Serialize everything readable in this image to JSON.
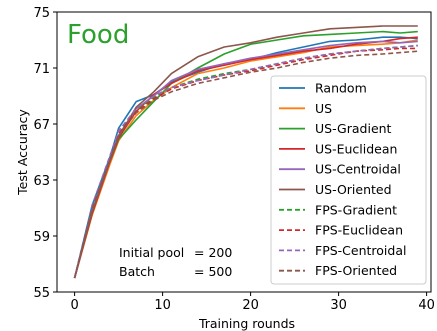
{
  "chart_data": {
    "type": "line",
    "title": "Food",
    "title_color": "#2ca02c",
    "xlabel": "Training rounds",
    "ylabel": "Test Accuracy",
    "xlim": [
      -2,
      40.5
    ],
    "ylim": [
      55,
      75
    ],
    "xticks": [
      0,
      10,
      20,
      30,
      40
    ],
    "yticks": [
      55,
      59,
      63,
      67,
      71,
      75
    ],
    "grid": false,
    "legend_position": "right",
    "annotation": {
      "line1": "Initial pool = 200",
      "line1_label": "Initial pool",
      "line1_value": "= 200",
      "line2_label": "Batch",
      "line2_value": "= 500"
    },
    "x": [
      0,
      2,
      4,
      5,
      7,
      9,
      11,
      14,
      17,
      20,
      23,
      26,
      29,
      32,
      35,
      37,
      39
    ],
    "series": [
      {
        "name": "Random",
        "color": "#1f77b4",
        "dash": "solid",
        "values": [
          56.0,
          61.2,
          64.6,
          66.7,
          68.6,
          69.1,
          70.0,
          70.7,
          71.3,
          71.6,
          72.1,
          72.5,
          72.9,
          73.0,
          73.2,
          73.2,
          73.1
        ]
      },
      {
        "name": "US",
        "color": "#ff7f0e",
        "dash": "solid",
        "values": [
          56.0,
          60.5,
          64.1,
          65.8,
          67.6,
          68.7,
          69.6,
          70.6,
          71.0,
          71.5,
          71.8,
          72.1,
          72.5,
          72.6,
          72.7,
          72.8,
          73.0
        ]
      },
      {
        "name": "US-Gradient",
        "color": "#2ca02c",
        "dash": "solid",
        "values": [
          56.0,
          60.8,
          64.3,
          65.9,
          67.3,
          68.6,
          69.9,
          71.0,
          72.0,
          72.7,
          73.0,
          73.3,
          73.4,
          73.5,
          73.6,
          73.5,
          73.6
        ]
      },
      {
        "name": "US-Euclidean",
        "color": "#d62728",
        "dash": "solid",
        "values": [
          56.0,
          60.6,
          64.3,
          66.0,
          67.9,
          69.1,
          69.9,
          70.8,
          71.2,
          71.6,
          71.9,
          72.2,
          72.4,
          72.7,
          72.9,
          73.1,
          73.2
        ]
      },
      {
        "name": "US-Centroidal",
        "color": "#9467bd",
        "dash": "solid",
        "values": [
          56.0,
          60.8,
          64.4,
          66.2,
          68.1,
          69.0,
          70.1,
          70.9,
          71.3,
          71.7,
          72.0,
          72.3,
          72.6,
          72.8,
          72.9,
          72.8,
          72.9
        ]
      },
      {
        "name": "US-Oriented",
        "color": "#8c564b",
        "dash": "solid",
        "values": [
          56.0,
          60.7,
          64.4,
          66.1,
          68.2,
          69.3,
          70.6,
          71.8,
          72.5,
          72.8,
          73.2,
          73.5,
          73.8,
          73.9,
          74.0,
          74.0,
          74.0
        ]
      },
      {
        "name": "FPS-Gradient",
        "color": "#2ca02c",
        "dash": "dashed",
        "values": [
          56.0,
          61.0,
          64.6,
          66.5,
          68.0,
          68.9,
          69.6,
          70.2,
          70.6,
          70.9,
          71.3,
          71.7,
          72.0,
          72.2,
          72.4,
          72.5,
          72.6
        ]
      },
      {
        "name": "FPS-Euclidean",
        "color": "#d62728",
        "dash": "dashed",
        "values": [
          56.0,
          61.1,
          64.5,
          66.3,
          67.9,
          68.8,
          69.5,
          70.1,
          70.5,
          70.8,
          71.2,
          71.6,
          71.9,
          72.2,
          72.3,
          72.4,
          72.4
        ]
      },
      {
        "name": "FPS-Centroidal",
        "color": "#9467bd",
        "dash": "dashed",
        "values": [
          56.0,
          61.2,
          64.7,
          66.5,
          68.1,
          69.0,
          69.6,
          70.1,
          70.5,
          70.9,
          71.3,
          71.7,
          72.0,
          72.2,
          72.4,
          72.5,
          72.6
        ]
      },
      {
        "name": "FPS-Oriented",
        "color": "#8c564b",
        "dash": "dashed",
        "values": [
          56.0,
          61.0,
          64.4,
          66.2,
          67.8,
          68.7,
          69.3,
          69.9,
          70.3,
          70.7,
          71.0,
          71.4,
          71.7,
          71.9,
          72.0,
          72.1,
          72.2
        ]
      }
    ]
  }
}
